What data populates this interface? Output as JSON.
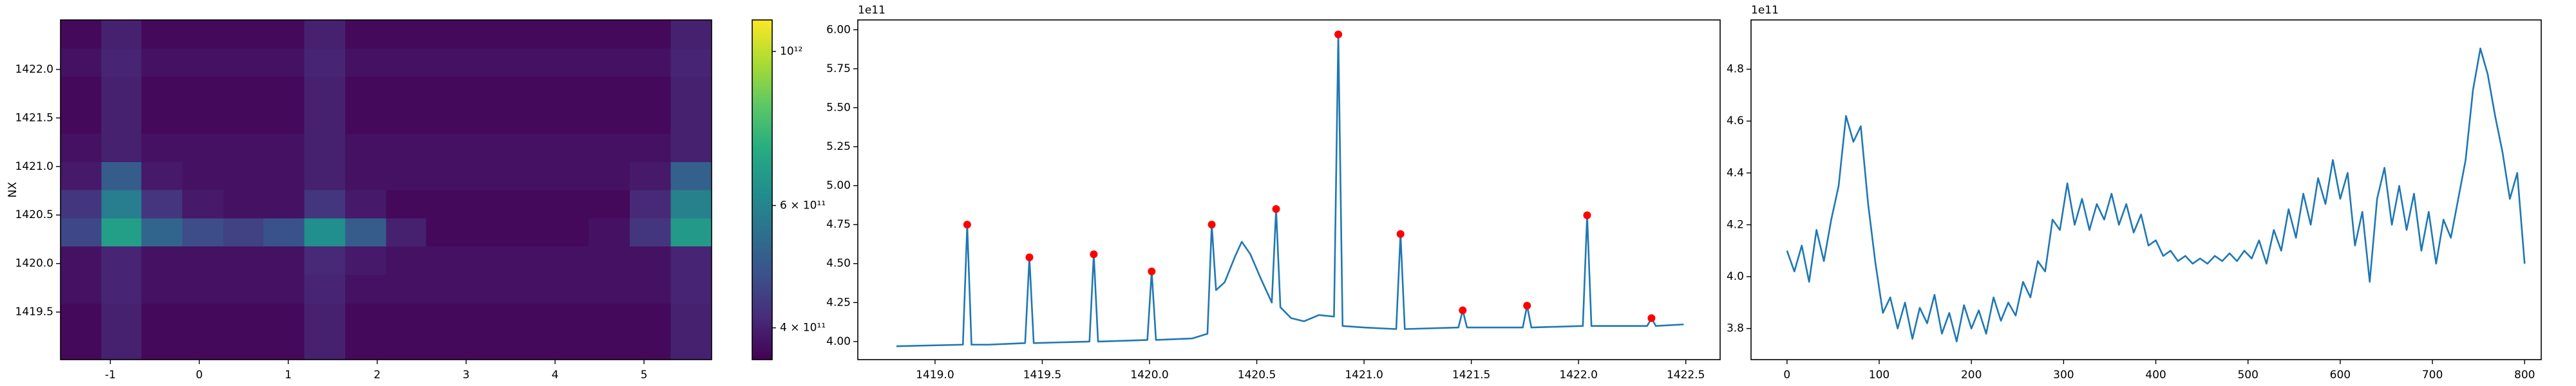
{
  "chart_data": [
    {
      "type": "heatmap",
      "ylabel": "NX",
      "cscale": "log",
      "colormap": "viridis",
      "xbins": [
        -1.56,
        -1.1,
        -0.65,
        -0.19,
        0.27,
        0.72,
        1.18,
        1.64,
        2.1,
        2.55,
        3.01,
        3.47,
        3.93,
        4.38,
        4.84,
        5.3,
        5.76
      ],
      "ybins": [
        1419.01,
        1419.3,
        1419.59,
        1419.89,
        1420.18,
        1420.47,
        1420.76,
        1421.05,
        1421.34,
        1421.64,
        1421.93,
        1422.22,
        1422.51
      ],
      "z": [
        [
          370000000000.0,
          400000000000.0,
          370000000000.0,
          370000000000.0,
          370000000000.0,
          370000000000.0,
          400000000000.0,
          370000000000.0,
          370000000000.0,
          370000000000.0,
          370000000000.0,
          370000000000.0,
          370000000000.0,
          370000000000.0,
          370000000000.0,
          400000000000.0
        ],
        [
          370000000000.0,
          400000000000.0,
          370000000000.0,
          370000000000.0,
          370000000000.0,
          370000000000.0,
          400000000000.0,
          370000000000.0,
          370000000000.0,
          370000000000.0,
          370000000000.0,
          370000000000.0,
          370000000000.0,
          370000000000.0,
          370000000000.0,
          400000000000.0
        ],
        [
          380000000000.0,
          405000000000.0,
          380000000000.0,
          380000000000.0,
          380000000000.0,
          380000000000.0,
          405000000000.0,
          380000000000.0,
          380000000000.0,
          380000000000.0,
          380000000000.0,
          380000000000.0,
          380000000000.0,
          380000000000.0,
          380000000000.0,
          405000000000.0
        ],
        [
          380000000000.0,
          405000000000.0,
          380000000000.0,
          380000000000.0,
          380000000000.0,
          380000000000.0,
          410000000000.0,
          390000000000.0,
          380000000000.0,
          380000000000.0,
          380000000000.0,
          380000000000.0,
          380000000000.0,
          380000000000.0,
          380000000000.0,
          405000000000.0
        ],
        [
          460000000000.0,
          680000000000.0,
          520000000000.0,
          470000000000.0,
          450000000000.0,
          480000000000.0,
          630000000000.0,
          500000000000.0,
          400000000000.0,
          370000000000.0,
          370000000000.0,
          370000000000.0,
          370000000000.0,
          380000000000.0,
          430000000000.0,
          660000000000.0
        ],
        [
          430000000000.0,
          580000000000.0,
          430000000000.0,
          390000000000.0,
          380000000000.0,
          380000000000.0,
          430000000000.0,
          390000000000.0,
          370000000000.0,
          370000000000.0,
          370000000000.0,
          370000000000.0,
          370000000000.0,
          370000000000.0,
          410000000000.0,
          590000000000.0
        ],
        [
          390000000000.0,
          500000000000.0,
          390000000000.0,
          380000000000.0,
          380000000000.0,
          380000000000.0,
          400000000000.0,
          380000000000.0,
          380000000000.0,
          380000000000.0,
          380000000000.0,
          380000000000.0,
          380000000000.0,
          380000000000.0,
          390000000000.0,
          510000000000.0
        ],
        [
          380000000000.0,
          400000000000.0,
          380000000000.0,
          380000000000.0,
          380000000000.0,
          380000000000.0,
          400000000000.0,
          380000000000.0,
          380000000000.0,
          380000000000.0,
          380000000000.0,
          380000000000.0,
          380000000000.0,
          380000000000.0,
          380000000000.0,
          400000000000.0
        ],
        [
          370000000000.0,
          400000000000.0,
          370000000000.0,
          370000000000.0,
          370000000000.0,
          370000000000.0,
          400000000000.0,
          370000000000.0,
          370000000000.0,
          370000000000.0,
          370000000000.0,
          370000000000.0,
          370000000000.0,
          370000000000.0,
          370000000000.0,
          400000000000.0
        ],
        [
          370000000000.0,
          400000000000.0,
          370000000000.0,
          370000000000.0,
          370000000000.0,
          370000000000.0,
          400000000000.0,
          370000000000.0,
          370000000000.0,
          370000000000.0,
          370000000000.0,
          370000000000.0,
          370000000000.0,
          370000000000.0,
          370000000000.0,
          400000000000.0
        ],
        [
          380000000000.0,
          405000000000.0,
          380000000000.0,
          380000000000.0,
          380000000000.0,
          380000000000.0,
          405000000000.0,
          380000000000.0,
          380000000000.0,
          380000000000.0,
          380000000000.0,
          380000000000.0,
          380000000000.0,
          380000000000.0,
          380000000000.0,
          405000000000.0
        ],
        [
          370000000000.0,
          400000000000.0,
          370000000000.0,
          370000000000.0,
          370000000000.0,
          370000000000.0,
          400000000000.0,
          370000000000.0,
          370000000000.0,
          370000000000.0,
          370000000000.0,
          370000000000.0,
          370000000000.0,
          370000000000.0,
          370000000000.0,
          400000000000.0
        ]
      ],
      "xlim": [
        -1.56,
        5.76
      ],
      "xticks": [
        -1,
        0,
        1,
        2,
        3,
        4,
        5
      ],
      "ylim": [
        1419.01,
        1422.51
      ],
      "yticks": [
        1419.5,
        {
          "value": 1420,
          "label": "1420.0"
        },
        1420.5,
        {
          "value": 1421,
          "label": "1421.0"
        },
        1421.5,
        {
          "value": 1422,
          "label": "1422.0"
        }
      ],
      "clim": [
        360000000000.0,
        1110000000000.0
      ],
      "cticks": [
        {
          "value": 400000000000.0,
          "label": "4 × 10¹¹"
        },
        {
          "value": 600000000000.0,
          "label": "6 × 10¹¹"
        },
        {
          "value": 1000000000000.0,
          "label": "10¹²"
        }
      ]
    },
    {
      "type": "line",
      "y_offset_text": "1e11",
      "series": [
        {
          "type": "line",
          "color": "#1f77b4",
          "x": [
            1418.82,
            1419.13,
            1419.15,
            1419.17,
            1419.25,
            1419.42,
            1419.44,
            1419.46,
            1419.72,
            1419.74,
            1419.76,
            1419.99,
            1420.01,
            1420.03,
            1420.2,
            1420.27,
            1420.29,
            1420.31,
            1420.35,
            1420.4,
            1420.43,
            1420.47,
            1420.52,
            1420.57,
            1420.59,
            1420.61,
            1420.66,
            1420.72,
            1420.79,
            1420.86,
            1420.88,
            1420.9,
            1421.0,
            1421.15,
            1421.17,
            1421.19,
            1421.44,
            1421.46,
            1421.48,
            1421.74,
            1421.76,
            1421.78,
            1422.02,
            1422.04,
            1422.06,
            1422.32,
            1422.34,
            1422.36,
            1422.49
          ],
          "values": [
            397000000000.0,
            398000000000.0,
            475000000000.0,
            398000000000.0,
            398000000000.0,
            399000000000.0,
            454000000000.0,
            399000000000.0,
            400000000000.0,
            456000000000.0,
            400000000000.0,
            401000000000.0,
            445000000000.0,
            401000000000.0,
            402000000000.0,
            405000000000.0,
            475000000000.0,
            433000000000.0,
            438000000000.0,
            455000000000.0,
            464000000000.0,
            456000000000.0,
            440000000000.0,
            425000000000.0,
            485000000000.0,
            422000000000.0,
            415000000000.0,
            413000000000.0,
            417000000000.0,
            416000000000.0,
            597000000000.0,
            410000000000.0,
            409000000000.0,
            408000000000.0,
            469000000000.0,
            408000000000.0,
            409000000000.0,
            420000000000.0,
            409000000000.0,
            409000000000.0,
            423000000000.0,
            409000000000.0,
            410000000000.0,
            481000000000.0,
            410000000000.0,
            410000000000.0,
            415000000000.0,
            410000000000.0,
            411000000000.0
          ]
        },
        {
          "type": "scatter",
          "color": "#ff0000",
          "x": [
            1419.15,
            1419.44,
            1419.74,
            1420.01,
            1420.29,
            1420.59,
            1420.88,
            1421.17,
            1421.46,
            1421.76,
            1422.04,
            1422.34
          ],
          "values": [
            475000000000.0,
            454000000000.0,
            456000000000.0,
            445000000000.0,
            475000000000.0,
            485000000000.0,
            597000000000.0,
            469000000000.0,
            420000000000.0,
            423000000000.0,
            481000000000.0,
            415000000000.0
          ]
        }
      ],
      "xlim": [
        1418.64,
        1422.66
      ],
      "xticks": [
        {
          "value": 1419,
          "label": "1419.0"
        },
        1419.5,
        {
          "value": 1420,
          "label": "1420.0"
        },
        1420.5,
        {
          "value": 1421,
          "label": "1421.0"
        },
        1421.5,
        {
          "value": 1422,
          "label": "1422.0"
        },
        1422.5
      ],
      "ylim": [
        388400000000.0,
        606300000000.0
      ],
      "yticks": [
        {
          "value": 400000000000.0,
          "label": "4.00"
        },
        {
          "value": 425000000000.0,
          "label": "4.25"
        },
        {
          "value": 450000000000.0,
          "label": "4.50"
        },
        {
          "value": 475000000000.0,
          "label": "4.75"
        },
        {
          "value": 500000000000.0,
          "label": "5.00"
        },
        {
          "value": 525000000000.0,
          "label": "5.25"
        },
        {
          "value": 550000000000.0,
          "label": "5.50"
        },
        {
          "value": 575000000000.0,
          "label": "5.75"
        },
        {
          "value": 600000000000.0,
          "label": "6.00"
        }
      ]
    },
    {
      "type": "line",
      "y_offset_text": "1e11",
      "series": [
        {
          "type": "line",
          "color": "#1f77b4",
          "x": [
            0,
            8,
            16,
            24,
            32,
            40,
            48,
            56,
            64,
            72,
            80,
            88,
            96,
            104,
            112,
            120,
            128,
            136,
            144,
            152,
            160,
            168,
            176,
            184,
            192,
            200,
            208,
            216,
            224,
            232,
            240,
            248,
            256,
            264,
            272,
            280,
            288,
            296,
            304,
            312,
            320,
            328,
            336,
            344,
            352,
            360,
            368,
            376,
            384,
            392,
            400,
            408,
            416,
            424,
            432,
            440,
            448,
            456,
            464,
            472,
            480,
            488,
            496,
            504,
            512,
            520,
            528,
            536,
            544,
            552,
            560,
            568,
            576,
            584,
            592,
            600,
            608,
            616,
            624,
            632,
            640,
            648,
            656,
            664,
            672,
            680,
            688,
            696,
            704,
            712,
            720,
            728,
            736,
            744,
            752,
            760,
            768,
            776,
            784,
            792,
            800
          ],
          "values": [
            410000000000.0,
            402000000000.0,
            412000000000.0,
            398000000000.0,
            418000000000.0,
            406000000000.0,
            422000000000.0,
            435000000000.0,
            462000000000.0,
            452000000000.0,
            458000000000.0,
            428000000000.0,
            405000000000.0,
            386000000000.0,
            392000000000.0,
            380000000000.0,
            390000000000.0,
            376000000000.0,
            388000000000.0,
            382000000000.0,
            393000000000.0,
            378000000000.0,
            386000000000.0,
            375000000000.0,
            389000000000.0,
            380000000000.0,
            387000000000.0,
            378000000000.0,
            392000000000.0,
            383000000000.0,
            390000000000.0,
            385000000000.0,
            398000000000.0,
            392000000000.0,
            406000000000.0,
            402000000000.0,
            422000000000.0,
            418000000000.0,
            436000000000.0,
            420000000000.0,
            430000000000.0,
            418000000000.0,
            428000000000.0,
            422000000000.0,
            432000000000.0,
            420000000000.0,
            428000000000.0,
            417000000000.0,
            424000000000.0,
            412000000000.0,
            414000000000.0,
            408000000000.0,
            410000000000.0,
            406000000000.0,
            408000000000.0,
            405000000000.0,
            407000000000.0,
            405000000000.0,
            408000000000.0,
            406000000000.0,
            409000000000.0,
            406000000000.0,
            410000000000.0,
            407000000000.0,
            414000000000.0,
            405000000000.0,
            418000000000.0,
            410000000000.0,
            426000000000.0,
            415000000000.0,
            432000000000.0,
            420000000000.0,
            438000000000.0,
            428000000000.0,
            445000000000.0,
            430000000000.0,
            440000000000.0,
            412000000000.0,
            425000000000.0,
            398000000000.0,
            430000000000.0,
            442000000000.0,
            420000000000.0,
            435000000000.0,
            418000000000.0,
            432000000000.0,
            410000000000.0,
            425000000000.0,
            405000000000.0,
            422000000000.0,
            415000000000.0,
            430000000000.0,
            445000000000.0,
            472000000000.0,
            488000000000.0,
            478000000000.0,
            462000000000.0,
            448000000000.0,
            430000000000.0,
            440000000000.0,
            405000000000.0
          ]
        }
      ],
      "xlim": [
        -39,
        818
      ],
      "xticks": [
        0,
        100,
        200,
        300,
        400,
        500,
        600,
        700,
        800
      ],
      "ylim": [
        368000000000.0,
        499000000000.0
      ],
      "yticks": [
        {
          "value": 380000000000.0,
          "label": "3.8"
        },
        {
          "value": 400000000000.0,
          "label": "4.0"
        },
        {
          "value": 420000000000.0,
          "label": "4.2"
        },
        {
          "value": 440000000000.0,
          "label": "4.4"
        },
        {
          "value": 460000000000.0,
          "label": "4.6"
        },
        {
          "value": 480000000000.0,
          "label": "4.8"
        }
      ]
    }
  ]
}
